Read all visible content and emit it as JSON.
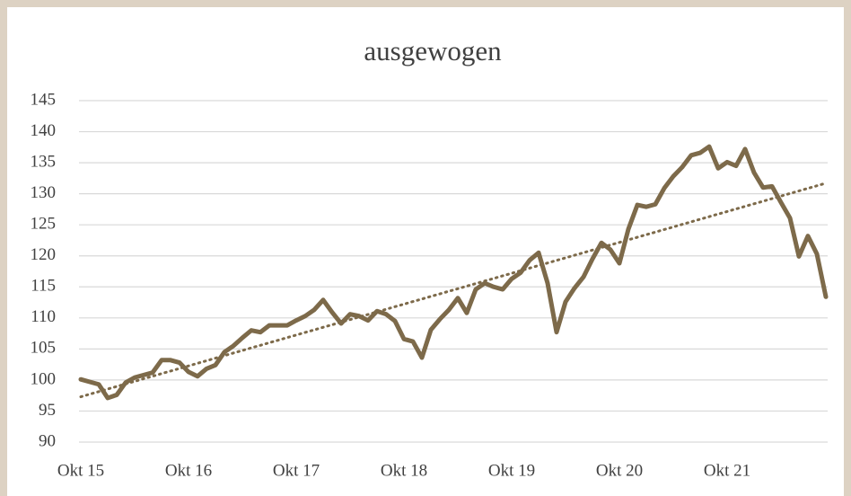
{
  "chart_data": {
    "type": "line",
    "title": "ausgewogen",
    "categories": [
      "Okt 15",
      null,
      null,
      null,
      null,
      null,
      null,
      null,
      null,
      null,
      null,
      null,
      "Okt 16",
      null,
      null,
      null,
      null,
      null,
      null,
      null,
      null,
      null,
      null,
      null,
      "Okt 17",
      null,
      null,
      null,
      null,
      null,
      null,
      null,
      null,
      null,
      null,
      null,
      "Okt 18",
      null,
      null,
      null,
      null,
      null,
      null,
      null,
      null,
      null,
      null,
      null,
      "Okt 19",
      null,
      null,
      null,
      null,
      null,
      null,
      null,
      null,
      null,
      null,
      null,
      "Okt 20",
      null,
      null,
      null,
      null,
      null,
      null,
      null,
      null,
      null,
      null,
      null,
      "Okt 21",
      null,
      null,
      null,
      null,
      null,
      null,
      null,
      null,
      null,
      null,
      null
    ],
    "series": [
      {
        "color": "#7d6a4a",
        "values": [
          100.1,
          99.7,
          99.3,
          97.1,
          97.6,
          99.6,
          100.4,
          100.8,
          101.2,
          103.2,
          103.2,
          102.8,
          101.3,
          100.6,
          101.8,
          102.4,
          104.5,
          105.5,
          106.8,
          108.0,
          107.7,
          108.8,
          108.8,
          108.8,
          109.6,
          110.3,
          111.3,
          112.9,
          110.9,
          109.1,
          110.6,
          110.3,
          109.6,
          111.1,
          110.6,
          109.5,
          106.6,
          106.2,
          103.6,
          108.1,
          109.8,
          111.3,
          113.2,
          110.8,
          114.6,
          115.6,
          115.0,
          114.6,
          116.3,
          117.3,
          119.3,
          120.5,
          115.6,
          107.7,
          112.6,
          114.8,
          116.6,
          119.5,
          122.1,
          121.0,
          118.8,
          124.3,
          128.2,
          127.9,
          128.3,
          130.9,
          132.8,
          134.3,
          136.2,
          136.6,
          137.6,
          134.1,
          135.1,
          134.5,
          137.2,
          133.4,
          131.0,
          131.2,
          128.6,
          126.1,
          119.9,
          123.2,
          120.3,
          113.4
        ]
      }
    ],
    "trend": [
      97.3,
      131.7
    ],
    "ylim": [
      90,
      145
    ],
    "yticks": [
      90,
      95,
      100,
      105,
      110,
      115,
      120,
      125,
      130,
      135,
      140,
      145
    ],
    "grid": true
  }
}
